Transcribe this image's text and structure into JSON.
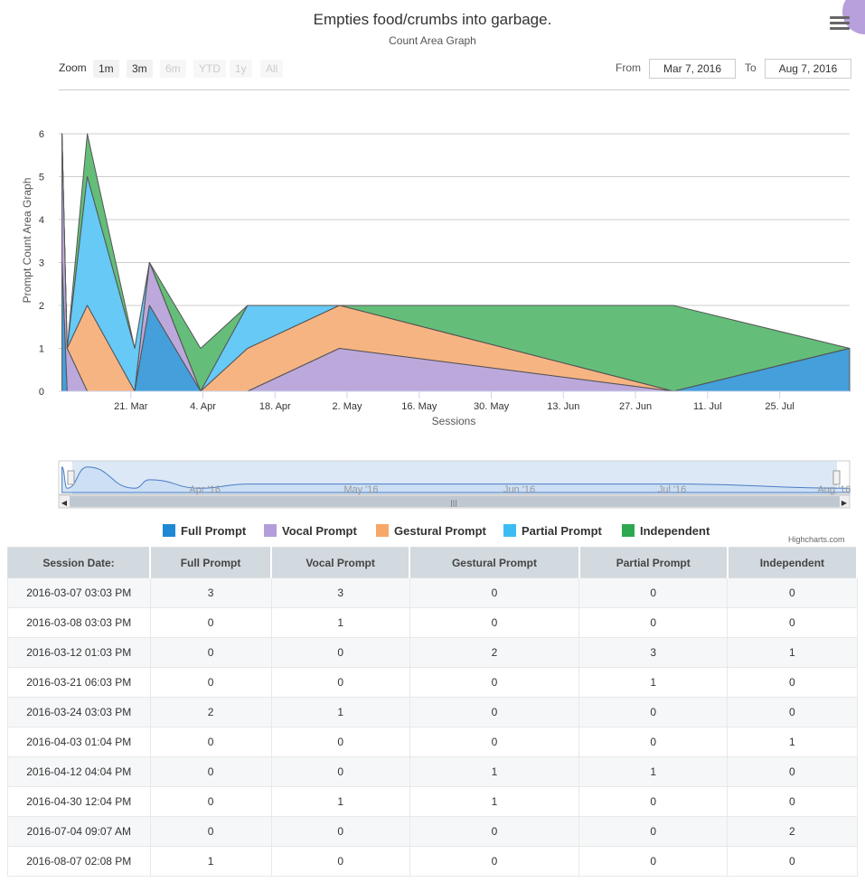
{
  "header": {
    "title": "Empties food/crumbs into garbage.",
    "subtitle": "Count Area Graph"
  },
  "range_selector": {
    "zoom_label": "Zoom",
    "buttons": [
      {
        "label": "1m",
        "enabled": true
      },
      {
        "label": "3m",
        "enabled": true
      },
      {
        "label": "6m",
        "enabled": false
      },
      {
        "label": "YTD",
        "enabled": false
      },
      {
        "label": "1y",
        "enabled": false
      },
      {
        "label": "All",
        "enabled": false
      }
    ],
    "from_label": "From",
    "from_value": "Mar 7, 2016",
    "to_label": "To",
    "to_value": "Aug 7, 2016"
  },
  "credits": "Highcharts.com",
  "colors": {
    "full": "#3a9ad9",
    "vocal": "#b9a3d9",
    "gestural": "#f7b07c",
    "partial": "#5ec6f5",
    "independent": "#5cba72"
  },
  "chart_data": {
    "type": "area",
    "title": "Empties food/crumbs into garbage.",
    "subtitle": "Count Area Graph",
    "xlabel": "Sessions",
    "ylabel": "Prompt Count Area Graph",
    "ylim": [
      0,
      6
    ],
    "yticks": [
      "0",
      "1",
      "2",
      "3",
      "4",
      "5",
      "6"
    ],
    "xlim": [
      "2016-03-07",
      "2016-08-07"
    ],
    "xticks": [
      {
        "date": "2016-03-21",
        "label": "21. Mar"
      },
      {
        "date": "2016-04-04",
        "label": "4. Apr"
      },
      {
        "date": "2016-04-18",
        "label": "18. Apr"
      },
      {
        "date": "2016-05-02",
        "label": "2. May"
      },
      {
        "date": "2016-05-16",
        "label": "16. May"
      },
      {
        "date": "2016-05-30",
        "label": "30. May"
      },
      {
        "date": "2016-06-13",
        "label": "13. Jun"
      },
      {
        "date": "2016-06-27",
        "label": "27. Jun"
      },
      {
        "date": "2016-07-11",
        "label": "11. Jul"
      },
      {
        "date": "2016-07-25",
        "label": "25. Jul"
      }
    ],
    "grid": true,
    "legend_position": "bottom-center",
    "stacked": true,
    "x": [
      "2016-03-07 15:03",
      "2016-03-08 15:03",
      "2016-03-12 13:03",
      "2016-03-21 18:03",
      "2016-03-24 15:03",
      "2016-04-03 13:04",
      "2016-04-12 16:04",
      "2016-04-30 12:04",
      "2016-07-04 09:07",
      "2016-08-07 14:08"
    ],
    "series": [
      {
        "name": "Full Prompt",
        "key": "full",
        "values": [
          3,
          0,
          0,
          0,
          2,
          0,
          0,
          0,
          0,
          1
        ]
      },
      {
        "name": "Vocal Prompt",
        "key": "vocal",
        "values": [
          3,
          1,
          0,
          0,
          1,
          0,
          0,
          1,
          0,
          0
        ]
      },
      {
        "name": "Gestural Prompt",
        "key": "gestural",
        "values": [
          0,
          0,
          2,
          0,
          0,
          0,
          1,
          1,
          0,
          0
        ]
      },
      {
        "name": "Partial Prompt",
        "key": "partial",
        "values": [
          0,
          0,
          3,
          1,
          0,
          0,
          1,
          0,
          0,
          0
        ]
      },
      {
        "name": "Independent",
        "key": "independent",
        "values": [
          0,
          0,
          1,
          0,
          0,
          1,
          0,
          0,
          2,
          0
        ]
      }
    ]
  },
  "navigator": {
    "labels": [
      "Apr '16",
      "May '16",
      "Jun '16",
      "Jul '16",
      "Aug '16"
    ]
  },
  "table": {
    "headers": [
      "Session Date:",
      "Full Prompt",
      "Vocal Prompt",
      "Gestural Prompt",
      "Partial Prompt",
      "Independent"
    ],
    "rows": [
      [
        "2016-03-07 03:03 PM",
        "3",
        "3",
        "0",
        "0",
        "0"
      ],
      [
        "2016-03-08 03:03 PM",
        "0",
        "1",
        "0",
        "0",
        "0"
      ],
      [
        "2016-03-12 01:03 PM",
        "0",
        "0",
        "2",
        "3",
        "1"
      ],
      [
        "2016-03-21 06:03 PM",
        "0",
        "0",
        "0",
        "1",
        "0"
      ],
      [
        "2016-03-24 03:03 PM",
        "2",
        "1",
        "0",
        "0",
        "0"
      ],
      [
        "2016-04-03 01:04 PM",
        "0",
        "0",
        "0",
        "0",
        "1"
      ],
      [
        "2016-04-12 04:04 PM",
        "0",
        "0",
        "1",
        "1",
        "0"
      ],
      [
        "2016-04-30 12:04 PM",
        "0",
        "1",
        "1",
        "0",
        "0"
      ],
      [
        "2016-07-04 09:07 AM",
        "0",
        "0",
        "0",
        "0",
        "2"
      ],
      [
        "2016-08-07 02:08 PM",
        "1",
        "0",
        "0",
        "0",
        "0"
      ]
    ]
  }
}
